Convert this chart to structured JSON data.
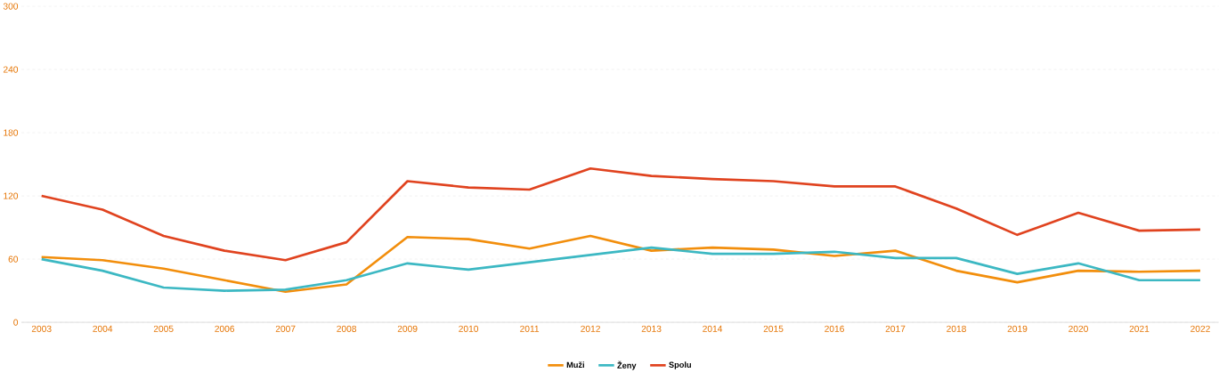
{
  "chart_data": {
    "type": "line",
    "categories": [
      "2003",
      "2004",
      "2005",
      "2006",
      "2007",
      "2008",
      "2009",
      "2010",
      "2011",
      "2012",
      "2013",
      "2014",
      "2015",
      "2016",
      "2017",
      "2018",
      "2019",
      "2020",
      "2021",
      "2022"
    ],
    "series": [
      {
        "name": "Muži",
        "color": "#f28e0c",
        "values": [
          62,
          59,
          51,
          40,
          29,
          36,
          81,
          79,
          70,
          82,
          68,
          71,
          69,
          63,
          68,
          49,
          38,
          49,
          48,
          49
        ]
      },
      {
        "name": "Ženy",
        "color": "#3cb8c3",
        "values": [
          60,
          49,
          33,
          30,
          31,
          40,
          56,
          50,
          57,
          64,
          71,
          65,
          65,
          67,
          61,
          61,
          46,
          56,
          40,
          40
        ]
      },
      {
        "name": "Spolu",
        "color": "#e0431f",
        "values": [
          120,
          107,
          82,
          68,
          59,
          76,
          134,
          128,
          126,
          146,
          139,
          136,
          134,
          129,
          129,
          108,
          83,
          104,
          87,
          88
        ]
      }
    ],
    "ylim": [
      0,
      300
    ],
    "yticks": [
      0,
      60,
      120,
      180,
      240,
      300
    ],
    "grid": "y",
    "legend": "bottom",
    "marker": "none",
    "line_style": "solid"
  }
}
